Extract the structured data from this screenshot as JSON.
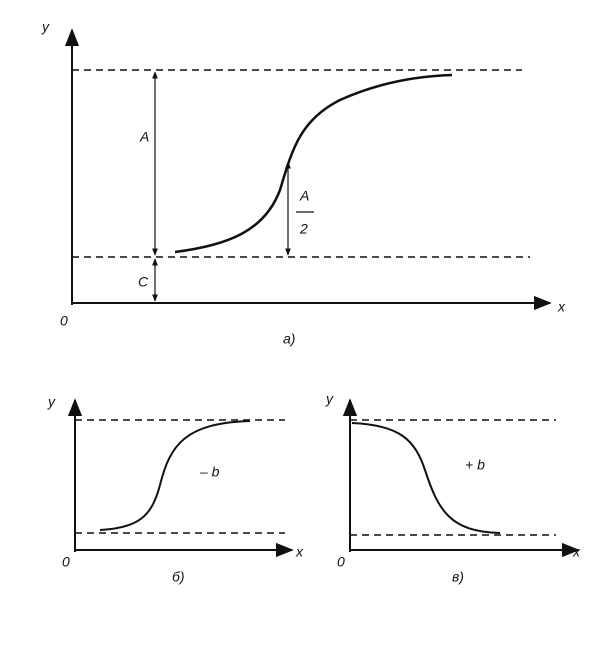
{
  "panels": [
    {
      "label": "а)",
      "axis_y": "y",
      "axis_x": "x",
      "origin": "0",
      "amplitude": "A",
      "offset": "C",
      "half_amplitude": {
        "numerator": "A",
        "denominator": "2"
      }
    },
    {
      "label": "б)",
      "axis_y": "y",
      "axis_x": "x",
      "origin": "0",
      "curve_label": "– b"
    },
    {
      "label": "в)",
      "axis_y": "y",
      "axis_x": "x",
      "origin": "0",
      "curve_label": "+ b"
    }
  ]
}
